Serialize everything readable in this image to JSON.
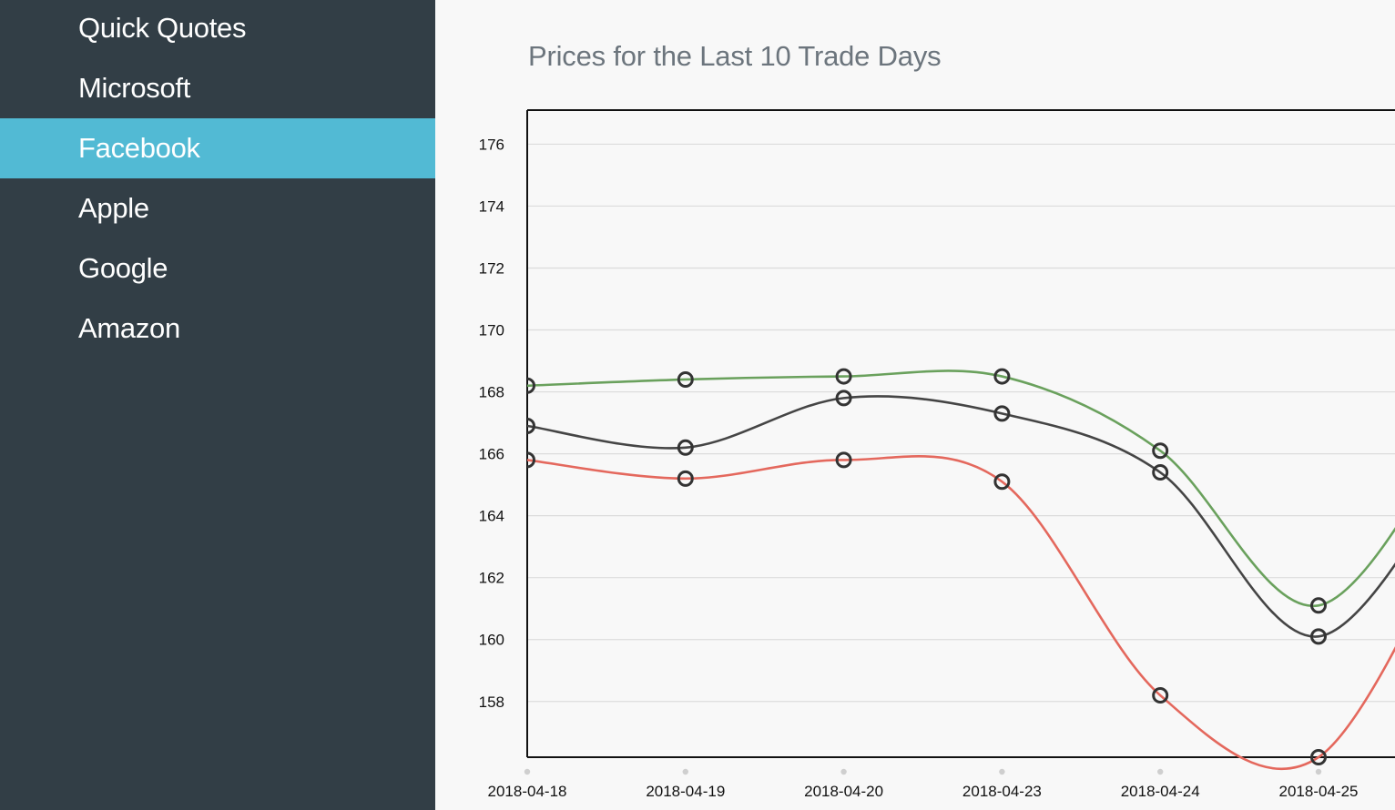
{
  "sidebar": {
    "items": [
      {
        "label": "Quick Quotes",
        "active": false
      },
      {
        "label": "Microsoft",
        "active": false
      },
      {
        "label": "Facebook",
        "active": true
      },
      {
        "label": "Apple",
        "active": false
      },
      {
        "label": "Google",
        "active": false
      },
      {
        "label": "Amazon",
        "active": false
      }
    ]
  },
  "colors": {
    "sidebar_bg": "#323e46",
    "active_bg": "#52bad4",
    "series_green": "#6aa15d",
    "series_dark": "#454545",
    "series_red": "#e4685d"
  },
  "chart_data": {
    "type": "line",
    "title": "Prices for the Last 10 Trade Days",
    "categories": [
      "2018-04-18",
      "2018-04-19",
      "2018-04-20",
      "2018-04-23",
      "2018-04-24",
      "2018-04-25"
    ],
    "series": [
      {
        "color": "#6aa15d",
        "values": [
          168.2,
          168.4,
          168.5,
          168.5,
          166.1,
          161.1
        ]
      },
      {
        "color": "#454545",
        "values": [
          166.9,
          166.2,
          167.8,
          167.3,
          165.4,
          160.1
        ]
      },
      {
        "color": "#e4685d",
        "values": [
          165.8,
          165.2,
          165.8,
          165.1,
          158.2,
          156.2
        ]
      }
    ],
    "yticks": [
      158,
      160,
      162,
      164,
      166,
      168,
      170,
      172,
      174,
      176
    ],
    "ylim": [
      156.2,
      177.1
    ],
    "grid": true,
    "curve": "smooth"
  }
}
